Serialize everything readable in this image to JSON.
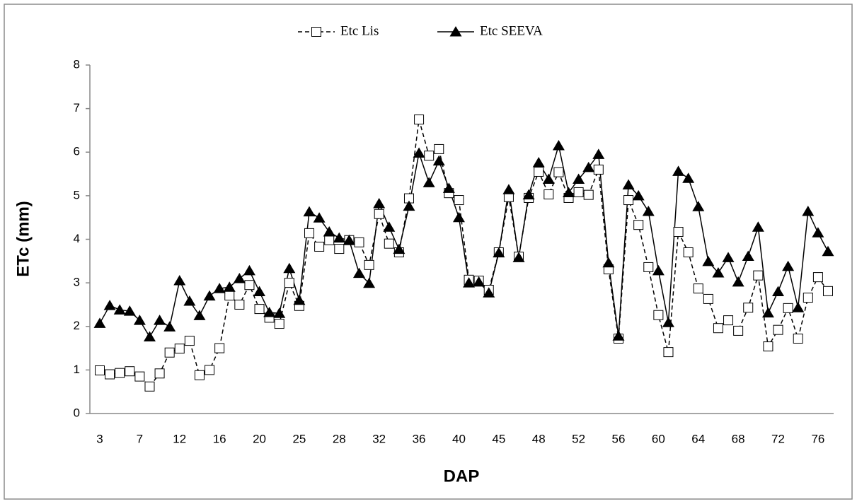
{
  "chart_data": {
    "type": "line",
    "x_label": "DAP",
    "y_label": "ETc (mm)",
    "legend": "top",
    "categories": [
      "3",
      null,
      null,
      null,
      "7",
      null,
      null,
      null,
      "12",
      null,
      null,
      null,
      "16",
      null,
      null,
      null,
      "20",
      null,
      null,
      null,
      "25",
      null,
      null,
      null,
      "28",
      null,
      null,
      null,
      "32",
      null,
      null,
      null,
      "36",
      null,
      null,
      null,
      "40",
      null,
      null,
      null,
      "45",
      null,
      null,
      null,
      "48",
      null,
      null,
      null,
      "52",
      null,
      null,
      null,
      "56",
      null,
      null,
      null,
      "60",
      null,
      null,
      null,
      "64",
      null,
      null,
      null,
      "68",
      null,
      null,
      null,
      "72",
      null,
      null,
      null,
      "76",
      null
    ],
    "ylim": [
      0,
      8
    ],
    "yticks": [
      0,
      1,
      2,
      3,
      4,
      5,
      6,
      7,
      8
    ],
    "grid": false,
    "series": [
      {
        "name": "Etc Lis",
        "color": "#000000",
        "line_style": "dashed",
        "marker": "square",
        "values": [
          0.99,
          0.9,
          0.93,
          0.97,
          0.85,
          0.62,
          0.92,
          1.4,
          1.49,
          1.67,
          0.88,
          1.0,
          1.5,
          2.71,
          2.5,
          2.95,
          2.4,
          2.2,
          2.06,
          3.0,
          2.47,
          4.14,
          3.83,
          3.98,
          3.78,
          3.98,
          3.93,
          3.41,
          4.58,
          3.9,
          3.7,
          4.94,
          6.75,
          5.92,
          6.07,
          5.06,
          4.9,
          3.07,
          3.05,
          2.84,
          3.7,
          4.97,
          3.6,
          4.95,
          5.55,
          5.03,
          5.54,
          4.95,
          5.08,
          5.02,
          5.6,
          3.31,
          1.72,
          4.9,
          4.33,
          3.36,
          2.26,
          1.41,
          4.17,
          3.7,
          2.87,
          2.63,
          1.96,
          2.14,
          1.9,
          2.43,
          3.17,
          1.54,
          1.92,
          2.42,
          1.72,
          2.66,
          3.13,
          2.81
        ]
      },
      {
        "name": "Etc SEEVA",
        "color": "#000000",
        "line_style": "solid",
        "marker": "triangle",
        "values": [
          2.07,
          2.48,
          2.38,
          2.35,
          2.14,
          1.76,
          2.14,
          1.99,
          3.05,
          2.58,
          2.25,
          2.7,
          2.87,
          2.9,
          3.1,
          3.28,
          2.8,
          2.32,
          2.3,
          3.33,
          2.6,
          4.63,
          4.49,
          4.17,
          4.03,
          3.98,
          3.22,
          2.99,
          4.82,
          4.28,
          3.77,
          4.76,
          5.98,
          5.3,
          5.8,
          5.17,
          4.5,
          3.0,
          3.02,
          2.77,
          3.69,
          5.14,
          3.58,
          5.02,
          5.76,
          5.38,
          6.15,
          5.07,
          5.38,
          5.65,
          5.95,
          3.46,
          1.78,
          5.25,
          5.0,
          4.64,
          3.28,
          2.09,
          5.56,
          5.4,
          4.75,
          3.49,
          3.23,
          3.58,
          3.02,
          3.61,
          4.28,
          2.31,
          2.8,
          3.38,
          2.43,
          4.64,
          4.15,
          3.72
        ]
      }
    ]
  }
}
